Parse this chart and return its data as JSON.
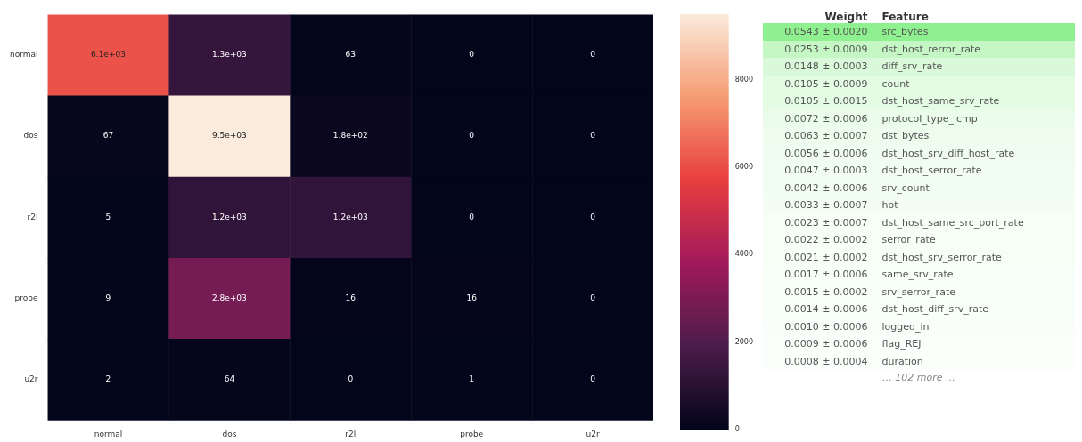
{
  "chart_data": [
    {
      "type": "heatmap",
      "categories": [
        "normal",
        "dos",
        "r2l",
        "probe",
        "u2r"
      ],
      "y_categories": [
        "normal",
        "dos",
        "r2l",
        "probe",
        "u2r"
      ],
      "cells": [
        [
          6100,
          1300,
          63,
          0,
          0
        ],
        [
          67,
          9500,
          180,
          0,
          0
        ],
        [
          5,
          1200,
          1200,
          0,
          0
        ],
        [
          9,
          2800,
          16,
          16,
          0
        ],
        [
          2,
          64,
          0,
          1,
          0
        ]
      ],
      "cell_labels": [
        [
          "6.1e+03",
          "1.3e+03",
          "63",
          "0",
          "0"
        ],
        [
          "67",
          "9.5e+03",
          "1.8e+02",
          "0",
          "0"
        ],
        [
          "5",
          "1.2e+03",
          "1.2e+03",
          "0",
          "0"
        ],
        [
          "9",
          "2.8e+03",
          "16",
          "16",
          "0"
        ],
        [
          "2",
          "64",
          "0",
          "1",
          "0"
        ]
      ],
      "clim": [
        0,
        9500
      ],
      "cticks": [
        0,
        2000,
        4000,
        6000,
        8000
      ]
    },
    {
      "type": "other",
      "categories": [
        "Weight",
        "Feature"
      ],
      "cell_labels": [
        [
          "0.0543 ± 0.0020",
          "src_bytes"
        ],
        [
          "0.0253 ± 0.0009",
          "dst_host_rerror_rate"
        ],
        [
          "0.0148 ± 0.0003",
          "diff_srv_rate"
        ],
        [
          "0.0105 ± 0.0009",
          "count"
        ],
        [
          "0.0105 ± 0.0015",
          "dst_host_same_srv_rate"
        ],
        [
          "0.0072 ± 0.0006",
          "protocol_type_icmp"
        ],
        [
          "0.0063 ± 0.0007",
          "dst_bytes"
        ],
        [
          "0.0056 ± 0.0006",
          "dst_host_srv_diff_host_rate"
        ],
        [
          "0.0047 ± 0.0003",
          "dst_host_serror_rate"
        ],
        [
          "0.0042 ± 0.0006",
          "srv_count"
        ],
        [
          "0.0033 ± 0.0007",
          "hot"
        ],
        [
          "0.0023 ± 0.0007",
          "dst_host_same_src_port_rate"
        ],
        [
          "0.0022 ± 0.0002",
          "serror_rate"
        ],
        [
          "0.0021 ± 0.0002",
          "dst_host_srv_serror_rate"
        ],
        [
          "0.0017 ± 0.0006",
          "same_srv_rate"
        ],
        [
          "0.0015 ± 0.0002",
          "srv_serror_rate"
        ],
        [
          "0.0014 ± 0.0006",
          "dst_host_diff_srv_rate"
        ],
        [
          "0.0010 ± 0.0006",
          "logged_in"
        ],
        [
          "0.0009 ± 0.0006",
          "flag_REJ"
        ],
        [
          "0.0008 ± 0.0004",
          "duration"
        ]
      ],
      "colors": [
        "#8ef08e",
        "#c4f7c4",
        "#daf9da",
        "#e4fbe4",
        "#e4fbe4",
        "#ebfceb",
        "#edfced",
        "#effcef",
        "#f1fdf1",
        "#f2fdf2",
        "#f4fdf4",
        "#f6fef6",
        "#f6fef6",
        "#f6fef6",
        "#f8fef8",
        "#f8fef8",
        "#f8fef8",
        "#fafefa",
        "#fbfffb",
        "#fbfffb"
      ],
      "annotations": [
        "… 102 more …"
      ]
    }
  ]
}
